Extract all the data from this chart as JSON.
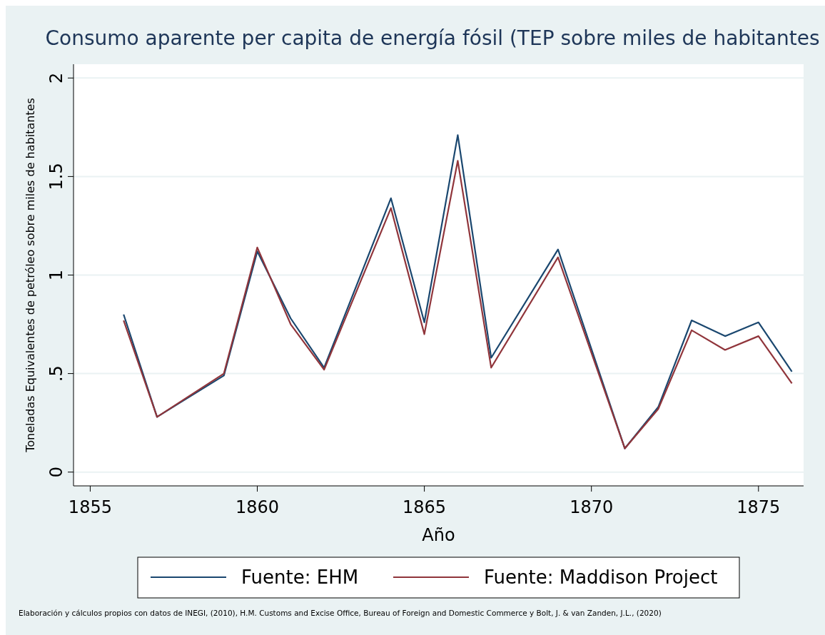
{
  "chart_data": {
    "type": "line",
    "title": "Consumo aparente per capita de energía fósil (TEP sobre miles de habitantes",
    "xlabel": "Año",
    "ylabel": "Toneladas Equivalentes de petróleo sobre miles de habitantes",
    "annotations": [
      "Elaboración y cálculos propios con datos de INEGI, (2010), H.M. Customs and Excise Office, Bureau of Foreign and Domestic Commerce y Bolt, J. & van Zanden, J.L., (2020)"
    ],
    "x": [
      1856,
      1857,
      1859,
      1860,
      1861,
      1862,
      1864,
      1865,
      1866,
      1867,
      1869,
      1871,
      1872,
      1873,
      1874,
      1875,
      1876
    ],
    "series": [
      {
        "name": "Fuente: EHM",
        "color": "#1a476f",
        "values": [
          0.8,
          0.28,
          0.49,
          1.12,
          0.78,
          0.53,
          1.39,
          0.76,
          1.71,
          0.58,
          1.13,
          0.12,
          0.33,
          0.77,
          0.69,
          0.76,
          0.51
        ]
      },
      {
        "name": "Fuente: Maddison Project",
        "color": "#90353b",
        "values": [
          0.77,
          0.28,
          0.5,
          1.14,
          0.75,
          0.52,
          1.34,
          0.7,
          1.58,
          0.53,
          1.09,
          0.12,
          0.32,
          0.72,
          0.62,
          0.69,
          0.45
        ]
      }
    ],
    "xlim": [
      1854.5,
      1876.35
    ],
    "xticks": [
      1855,
      1860,
      1865,
      1870,
      1875
    ],
    "ylim": [
      -0.07,
      2.07
    ],
    "yticks": [
      0,
      {
        "value": 0.5,
        "label": ".5"
      },
      1,
      1.5,
      2
    ],
    "grid": "y",
    "legend": "bottom",
    "marker": "none",
    "line_style": "solid"
  }
}
